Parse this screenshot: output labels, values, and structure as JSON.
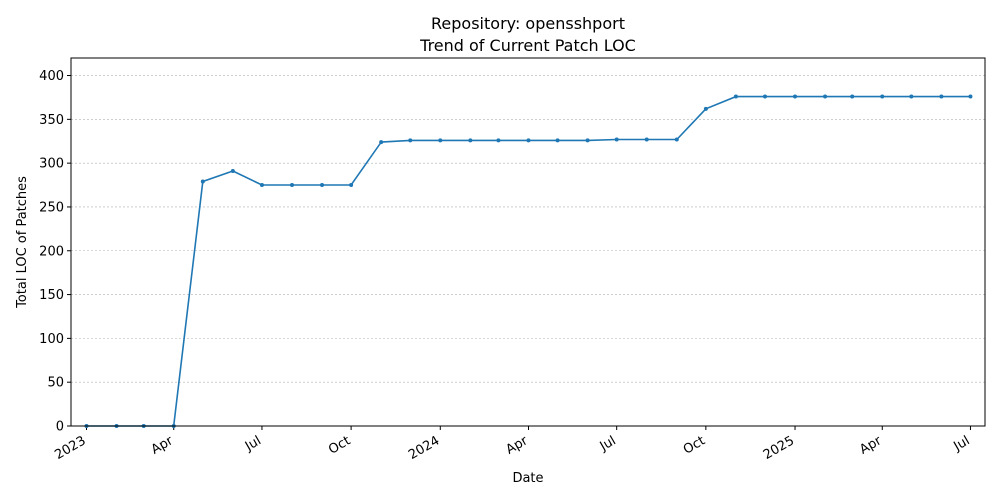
{
  "chart_data": {
    "type": "line",
    "title": "Repository: opensshport",
    "subtitle": "Trend of Current Patch LOC",
    "xlabel": "Date",
    "ylabel": "Total LOC of Patches",
    "ylim": [
      0,
      420
    ],
    "xlim": [
      "2022-12-16",
      "2025-07-16"
    ],
    "yticks": [
      0,
      50,
      100,
      150,
      200,
      250,
      300,
      350,
      400
    ],
    "xticks": [
      {
        "date": "2023-01-01",
        "label": "2023"
      },
      {
        "date": "2023-04-01",
        "label": "Apr"
      },
      {
        "date": "2023-07-01",
        "label": "Jul"
      },
      {
        "date": "2023-10-01",
        "label": "Oct"
      },
      {
        "date": "2024-01-01",
        "label": "2024"
      },
      {
        "date": "2024-04-01",
        "label": "Apr"
      },
      {
        "date": "2024-07-01",
        "label": "Jul"
      },
      {
        "date": "2024-10-01",
        "label": "Oct"
      },
      {
        "date": "2025-01-01",
        "label": "2025"
      },
      {
        "date": "2025-04-01",
        "label": "Apr"
      },
      {
        "date": "2025-07-01",
        "label": "Jul"
      }
    ],
    "grid": "horizontal",
    "color": "#1f77b4",
    "x": [
      "2023-01-01",
      "2023-02-01",
      "2023-03-01",
      "2023-04-01",
      "2023-05-01",
      "2023-06-01",
      "2023-07-01",
      "2023-08-01",
      "2023-09-01",
      "2023-10-01",
      "2023-11-01",
      "2023-12-01",
      "2024-01-01",
      "2024-02-01",
      "2024-03-01",
      "2024-04-01",
      "2024-05-01",
      "2024-06-01",
      "2024-07-01",
      "2024-08-01",
      "2024-09-01",
      "2024-10-01",
      "2024-11-01",
      "2024-12-01",
      "2025-01-01",
      "2025-02-01",
      "2025-03-01",
      "2025-04-01",
      "2025-05-01",
      "2025-06-01",
      "2025-07-01"
    ],
    "values": [
      0,
      0,
      0,
      0,
      279,
      291,
      275,
      275,
      275,
      275,
      324,
      326,
      326,
      326,
      326,
      326,
      326,
      326,
      327,
      327,
      327,
      362,
      376,
      376,
      376,
      376,
      376,
      376,
      376,
      376,
      376
    ]
  }
}
